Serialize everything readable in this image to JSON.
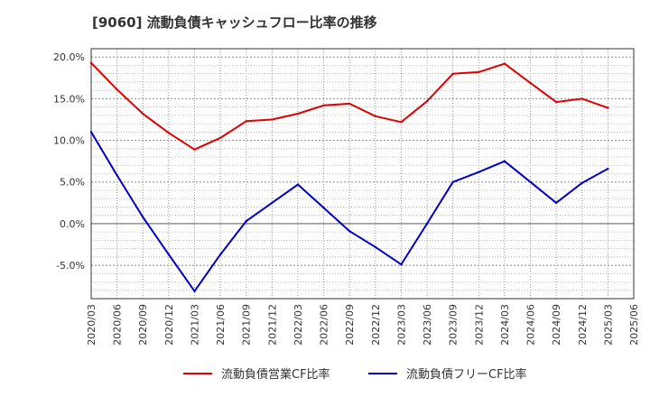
{
  "chart_data": {
    "type": "line",
    "title": "[9060]  流動負債キャッシュフロー比率の推移",
    "xlabel": "",
    "ylabel": "",
    "ylim": [
      -9,
      21
    ],
    "yticks": [
      20,
      15,
      10,
      5,
      0,
      -5
    ],
    "ytick_labels": [
      "20.0%",
      "15.0%",
      "10.0%",
      "5.0%",
      "0.0%",
      "-5.0%"
    ],
    "x": [
      "2020/03",
      "2020/06",
      "2020/09",
      "2020/12",
      "2021/03",
      "2021/06",
      "2021/09",
      "2021/12",
      "2022/03",
      "2022/06",
      "2022/09",
      "2022/12",
      "2023/03",
      "2023/06",
      "2023/09",
      "2023/12",
      "2024/03",
      "2024/06",
      "2024/09",
      "2024/12",
      "2025/03",
      "2025/06"
    ],
    "grid": true,
    "legend_position": "bottom",
    "series": [
      {
        "name": "流動負債営業CF比率",
        "color": "#e00000",
        "values": [
          19.3,
          16.1,
          13.2,
          10.9,
          8.9,
          10.3,
          12.3,
          12.5,
          13.2,
          14.2,
          14.4,
          12.9,
          12.2,
          14.7,
          18.0,
          18.2,
          19.2,
          16.9,
          14.6,
          15.0,
          13.9,
          null
        ]
      },
      {
        "name": "流動負債フリーCF比率",
        "color": "#0000cc",
        "values": [
          11.0,
          5.8,
          0.8,
          -3.7,
          -8.1,
          -3.7,
          0.3,
          2.5,
          4.7,
          1.9,
          -0.9,
          -2.8,
          -4.9,
          0.0,
          5.0,
          6.2,
          7.5,
          5.0,
          2.5,
          4.9,
          6.6,
          null
        ]
      }
    ]
  }
}
